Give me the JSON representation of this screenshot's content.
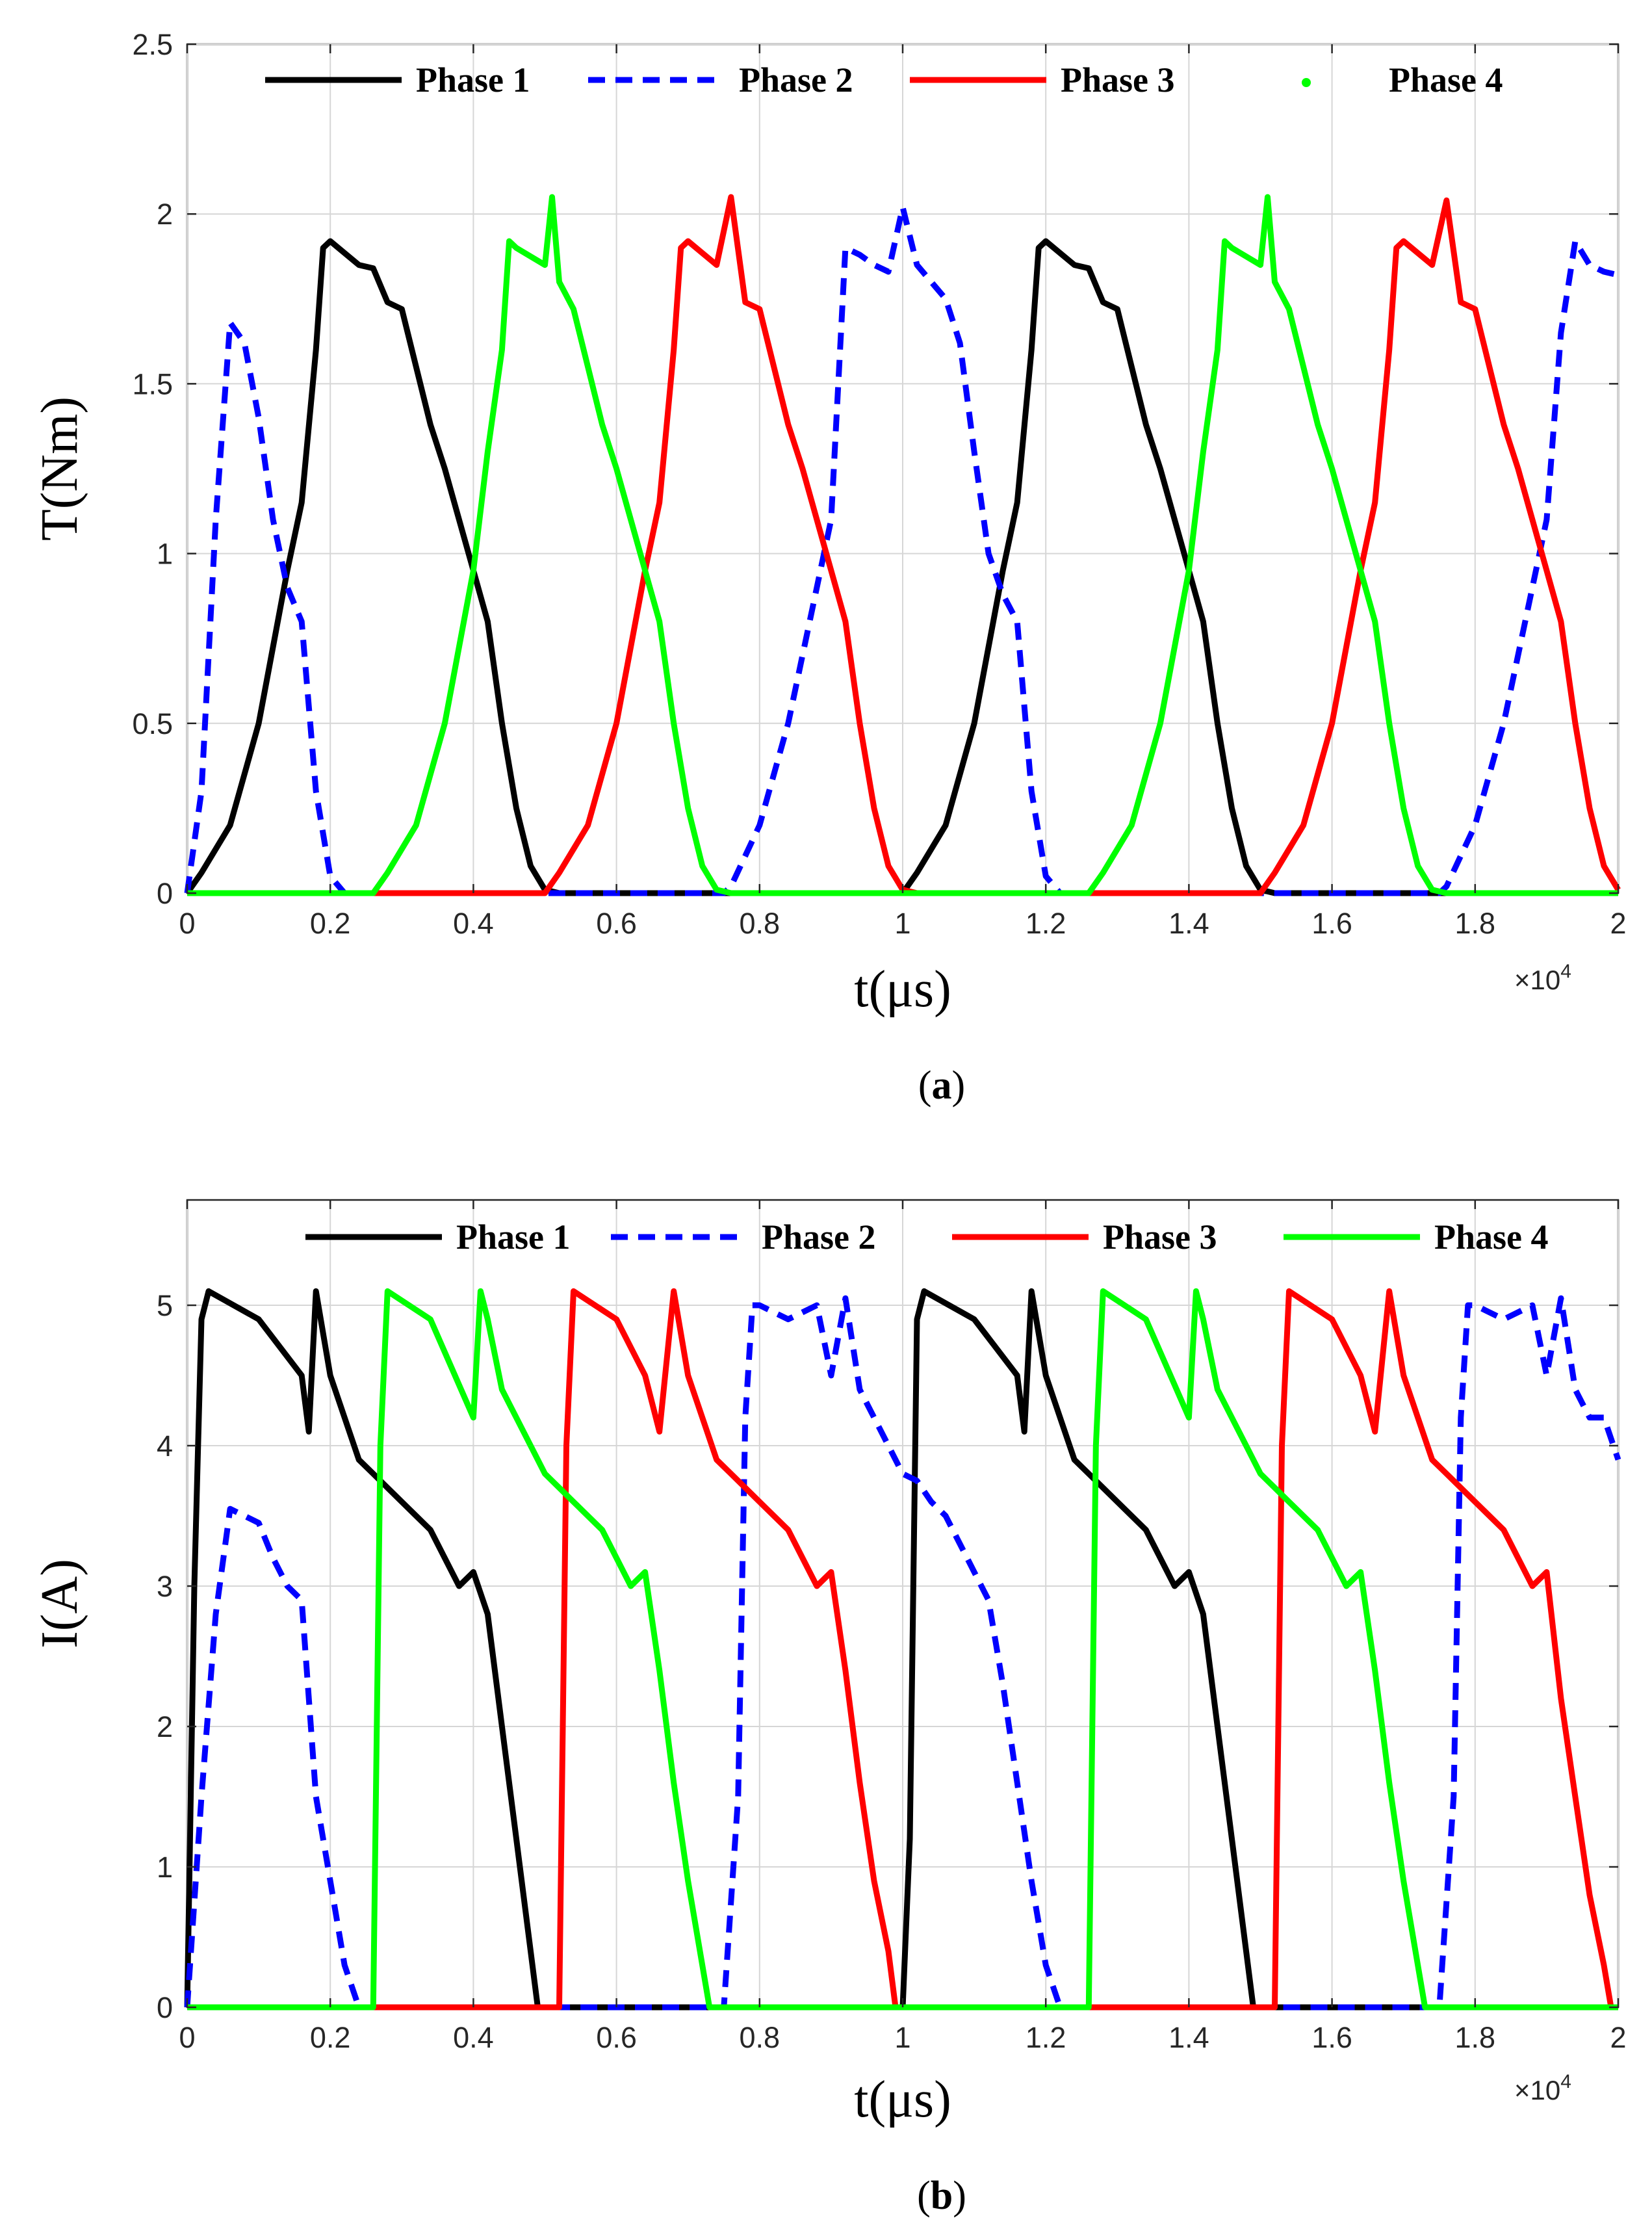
{
  "chart_data": [
    {
      "type": "line",
      "panel": "a",
      "caption": "(a)",
      "caption_letter": "a",
      "xlabel": "t(μs)",
      "ylabel": "T(Nm)",
      "x_multiplier": "×10",
      "x_multiplier_exp": "4",
      "xlim": [
        0,
        2
      ],
      "ylim": [
        0,
        2.5
      ],
      "grid": true,
      "legend_position": "top",
      "x_ticks": [
        0,
        0.2,
        0.4,
        0.6,
        0.8,
        1,
        1.2,
        1.4,
        1.6,
        1.8,
        2
      ],
      "x_tick_labels": [
        "0",
        "0.2",
        "0.4",
        "0.6",
        "0.8",
        "1",
        "1.2",
        "1.4",
        "1.6",
        "1.8",
        "2"
      ],
      "y_ticks": [
        0,
        0.5,
        1,
        1.5,
        2,
        2.5
      ],
      "y_tick_labels": [
        "0",
        "0.5",
        "1",
        "1.5",
        "2",
        "2.5"
      ],
      "series": [
        {
          "name": "Phase 1",
          "color": "#000000",
          "style": "solid",
          "x": [
            0,
            0.02,
            0.06,
            0.1,
            0.14,
            0.16,
            0.18,
            0.19,
            0.2,
            0.24,
            0.26,
            0.28,
            0.3,
            0.32,
            0.34,
            0.36,
            0.38,
            0.4,
            0.42,
            0.44,
            0.46,
            0.48,
            0.5,
            0.52,
            0.54,
            1.0,
            1.02,
            1.06,
            1.1,
            1.14,
            1.16,
            1.18,
            1.19,
            1.2,
            1.24,
            1.26,
            1.28,
            1.3,
            1.32,
            1.34,
            1.36,
            1.38,
            1.4,
            1.42,
            1.44,
            1.46,
            1.48,
            1.5,
            1.52,
            1.54,
            2.0
          ],
          "y": [
            0,
            0.06,
            0.2,
            0.5,
            0.95,
            1.15,
            1.6,
            1.9,
            1.92,
            1.85,
            1.84,
            1.74,
            1.72,
            1.55,
            1.38,
            1.25,
            1.1,
            0.95,
            0.8,
            0.5,
            0.25,
            0.08,
            0.01,
            0,
            0,
            0,
            0.06,
            0.2,
            0.5,
            0.95,
            1.15,
            1.6,
            1.9,
            1.92,
            1.85,
            1.84,
            1.74,
            1.72,
            1.55,
            1.38,
            1.25,
            1.1,
            0.95,
            0.8,
            0.5,
            0.25,
            0.08,
            0.01,
            0,
            0,
            0
          ]
        },
        {
          "name": "Phase 2",
          "color": "#0000ff",
          "style": "dashed",
          "x": [
            0,
            0.02,
            0.04,
            0.06,
            0.08,
            0.1,
            0.12,
            0.14,
            0.16,
            0.18,
            0.2,
            0.22,
            0.24,
            0.75,
            0.76,
            0.8,
            0.84,
            0.88,
            0.9,
            0.92,
            0.94,
            0.96,
            0.98,
            1.0,
            1.02,
            1.04,
            1.06,
            1.08,
            1.1,
            1.12,
            1.14,
            1.16,
            1.18,
            1.2,
            1.22,
            1.24,
            1.75,
            1.76,
            1.8,
            1.84,
            1.88,
            1.9,
            1.92,
            1.94,
            1.96,
            1.98,
            2.0
          ],
          "y": [
            0,
            0.3,
            1.1,
            1.68,
            1.62,
            1.4,
            1.1,
            0.9,
            0.8,
            0.3,
            0.05,
            0,
            0,
            0,
            0.02,
            0.2,
            0.5,
            0.9,
            1.1,
            1.9,
            1.88,
            1.85,
            1.83,
            2.02,
            1.85,
            1.8,
            1.75,
            1.62,
            1.3,
            1.0,
            0.88,
            0.8,
            0.3,
            0.05,
            0,
            0,
            0,
            0.02,
            0.2,
            0.5,
            0.9,
            1.1,
            1.65,
            1.92,
            1.85,
            1.83,
            1.82
          ]
        },
        {
          "name": "Phase 3",
          "color": "#ff0000",
          "style": "solid",
          "x": [
            0,
            0.5,
            0.52,
            0.56,
            0.6,
            0.64,
            0.66,
            0.68,
            0.69,
            0.7,
            0.74,
            0.76,
            0.78,
            0.8,
            0.82,
            0.84,
            0.86,
            0.88,
            0.9,
            0.92,
            0.94,
            0.96,
            0.98,
            1.0,
            1.02,
            1.5,
            1.52,
            1.56,
            1.6,
            1.64,
            1.66,
            1.68,
            1.69,
            1.7,
            1.74,
            1.76,
            1.78,
            1.8,
            1.82,
            1.84,
            1.86,
            1.88,
            1.9,
            1.92,
            1.94,
            1.96,
            1.98,
            2.0
          ],
          "y": [
            0,
            0,
            0.06,
            0.2,
            0.5,
            0.95,
            1.15,
            1.6,
            1.9,
            1.92,
            1.85,
            2.05,
            1.74,
            1.72,
            1.55,
            1.38,
            1.25,
            1.1,
            0.95,
            0.8,
            0.5,
            0.25,
            0.08,
            0.01,
            0,
            0,
            0.06,
            0.2,
            0.5,
            0.95,
            1.15,
            1.6,
            1.9,
            1.92,
            1.85,
            2.04,
            1.74,
            1.72,
            1.55,
            1.38,
            1.25,
            1.1,
            0.95,
            0.8,
            0.5,
            0.25,
            0.08,
            0.01
          ]
        },
        {
          "name": "Phase 4",
          "color": "#00ff00",
          "style": "solid",
          "x": [
            0,
            0.26,
            0.28,
            0.32,
            0.36,
            0.4,
            0.42,
            0.44,
            0.45,
            0.46,
            0.5,
            0.51,
            0.52,
            0.54,
            0.56,
            0.58,
            0.6,
            0.62,
            0.64,
            0.66,
            0.68,
            0.7,
            0.72,
            0.74,
            0.76,
            1.26,
            1.28,
            1.32,
            1.36,
            1.4,
            1.42,
            1.44,
            1.45,
            1.46,
            1.5,
            1.51,
            1.52,
            1.54,
            1.56,
            1.58,
            1.6,
            1.62,
            1.64,
            1.66,
            1.68,
            1.7,
            1.72,
            1.74,
            1.76,
            2.0
          ],
          "y": [
            0,
            0,
            0.06,
            0.2,
            0.5,
            0.95,
            1.3,
            1.6,
            1.92,
            1.9,
            1.85,
            2.05,
            1.8,
            1.72,
            1.55,
            1.38,
            1.25,
            1.1,
            0.95,
            0.8,
            0.5,
            0.25,
            0.08,
            0.01,
            0,
            0,
            0.06,
            0.2,
            0.5,
            0.95,
            1.3,
            1.6,
            1.92,
            1.9,
            1.85,
            2.05,
            1.8,
            1.72,
            1.55,
            1.38,
            1.25,
            1.1,
            0.95,
            0.8,
            0.5,
            0.25,
            0.08,
            0.01,
            0,
            0
          ]
        }
      ]
    },
    {
      "type": "line",
      "panel": "b",
      "caption": "(b)",
      "caption_letter": "b",
      "xlabel": "t(μs)",
      "ylabel": "I(A)",
      "x_multiplier": "×10",
      "x_multiplier_exp": "4",
      "xlim": [
        0,
        2
      ],
      "ylim": [
        0,
        5.75
      ],
      "grid": true,
      "legend_position": "top",
      "x_ticks": [
        0,
        0.2,
        0.4,
        0.6,
        0.8,
        1,
        1.2,
        1.4,
        1.6,
        1.8,
        2
      ],
      "x_tick_labels": [
        "0",
        "0.2",
        "0.4",
        "0.6",
        "0.8",
        "1",
        "1.2",
        "1.4",
        "1.6",
        "1.8",
        "2"
      ],
      "y_ticks": [
        0,
        1,
        2,
        3,
        4,
        5
      ],
      "y_tick_labels": [
        "0",
        "1",
        "2",
        "3",
        "4",
        "5"
      ],
      "series": [
        {
          "name": "Phase 1",
          "color": "#000000",
          "style": "solid",
          "x": [
            0,
            0.01,
            0.02,
            0.03,
            0.1,
            0.16,
            0.17,
            0.18,
            0.2,
            0.24,
            0.26,
            0.3,
            0.34,
            0.38,
            0.4,
            0.42,
            0.44,
            0.46,
            0.48,
            0.49,
            1.0,
            1.01,
            1.02,
            1.03,
            1.1,
            1.16,
            1.17,
            1.18,
            1.2,
            1.24,
            1.26,
            1.3,
            1.34,
            1.38,
            1.4,
            1.42,
            1.44,
            1.46,
            1.48,
            1.49,
            2.0
          ],
          "y": [
            0,
            3.0,
            4.9,
            5.1,
            4.9,
            4.5,
            4.1,
            5.1,
            4.5,
            3.9,
            3.8,
            3.6,
            3.4,
            3.0,
            3.1,
            2.8,
            2.0,
            1.2,
            0.4,
            0,
            0,
            1.2,
            4.9,
            5.1,
            4.9,
            4.5,
            4.1,
            5.1,
            4.5,
            3.9,
            3.8,
            3.6,
            3.4,
            3.0,
            3.1,
            2.8,
            2.0,
            1.2,
            0.4,
            0,
            0
          ]
        },
        {
          "name": "Phase 2",
          "color": "#0000ff",
          "style": "dashed",
          "x": [
            0,
            0.02,
            0.04,
            0.06,
            0.1,
            0.12,
            0.14,
            0.16,
            0.18,
            0.2,
            0.22,
            0.24,
            0.75,
            0.77,
            0.78,
            0.79,
            0.8,
            0.84,
            0.88,
            0.9,
            0.92,
            0.94,
            0.96,
            0.98,
            1.0,
            1.02,
            1.04,
            1.06,
            1.08,
            1.1,
            1.12,
            1.14,
            1.16,
            1.18,
            1.2,
            1.22,
            1.24,
            1.75,
            1.77,
            1.78,
            1.79,
            1.8,
            1.84,
            1.88,
            1.9,
            1.92,
            1.94,
            1.96,
            1.98,
            2.0
          ],
          "y": [
            0,
            1.5,
            2.8,
            3.55,
            3.45,
            3.2,
            3.0,
            2.9,
            1.5,
            0.9,
            0.3,
            0,
            0,
            1.5,
            4.2,
            5.0,
            5.0,
            4.9,
            5.0,
            4.5,
            5.05,
            4.4,
            4.2,
            4.0,
            3.8,
            3.75,
            3.6,
            3.5,
            3.3,
            3.1,
            2.9,
            2.3,
            1.6,
            0.9,
            0.3,
            0,
            0,
            0,
            1.5,
            4.2,
            5.0,
            5.0,
            4.9,
            5.0,
            4.5,
            5.05,
            4.4,
            4.2,
            4.2,
            3.9
          ]
        },
        {
          "name": "Phase 3",
          "color": "#ff0000",
          "style": "solid",
          "x": [
            0,
            0.52,
            0.53,
            0.54,
            0.6,
            0.64,
            0.66,
            0.68,
            0.7,
            0.74,
            0.76,
            0.8,
            0.84,
            0.88,
            0.9,
            0.92,
            0.94,
            0.96,
            0.98,
            0.99,
            1.0,
            1.52,
            1.53,
            1.54,
            1.6,
            1.64,
            1.66,
            1.68,
            1.7,
            1.74,
            1.76,
            1.8,
            1.84,
            1.88,
            1.9,
            1.92,
            1.94,
            1.96,
            1.98,
            1.99,
            2.0
          ],
          "y": [
            0,
            0,
            4.0,
            5.1,
            4.9,
            4.5,
            4.1,
            5.1,
            4.5,
            3.9,
            3.8,
            3.6,
            3.4,
            3.0,
            3.1,
            2.4,
            1.6,
            0.9,
            0.4,
            0,
            0,
            0,
            4.0,
            5.1,
            4.9,
            4.5,
            4.1,
            5.1,
            4.5,
            3.9,
            3.8,
            3.6,
            3.4,
            3.0,
            3.1,
            2.2,
            1.5,
            0.8,
            0.3,
            0,
            0
          ]
        },
        {
          "name": "Phase 4",
          "color": "#00ff00",
          "style": "solid",
          "x": [
            0,
            0.26,
            0.27,
            0.28,
            0.34,
            0.4,
            0.41,
            0.42,
            0.44,
            0.48,
            0.5,
            0.54,
            0.58,
            0.62,
            0.64,
            0.66,
            0.68,
            0.7,
            0.72,
            0.73,
            1.26,
            1.27,
            1.28,
            1.34,
            1.4,
            1.41,
            1.42,
            1.44,
            1.48,
            1.5,
            1.54,
            1.58,
            1.62,
            1.64,
            1.66,
            1.68,
            1.7,
            1.72,
            1.73,
            2.0
          ],
          "y": [
            0,
            0,
            4.0,
            5.1,
            4.9,
            4.2,
            5.1,
            4.9,
            4.4,
            4.0,
            3.8,
            3.6,
            3.4,
            3.0,
            3.1,
            2.4,
            1.6,
            0.9,
            0.3,
            0,
            0,
            4.0,
            5.1,
            4.9,
            4.2,
            5.1,
            4.9,
            4.4,
            4.0,
            3.8,
            3.6,
            3.4,
            3.0,
            3.1,
            2.4,
            1.6,
            0.9,
            0.3,
            0,
            0
          ]
        }
      ]
    }
  ]
}
